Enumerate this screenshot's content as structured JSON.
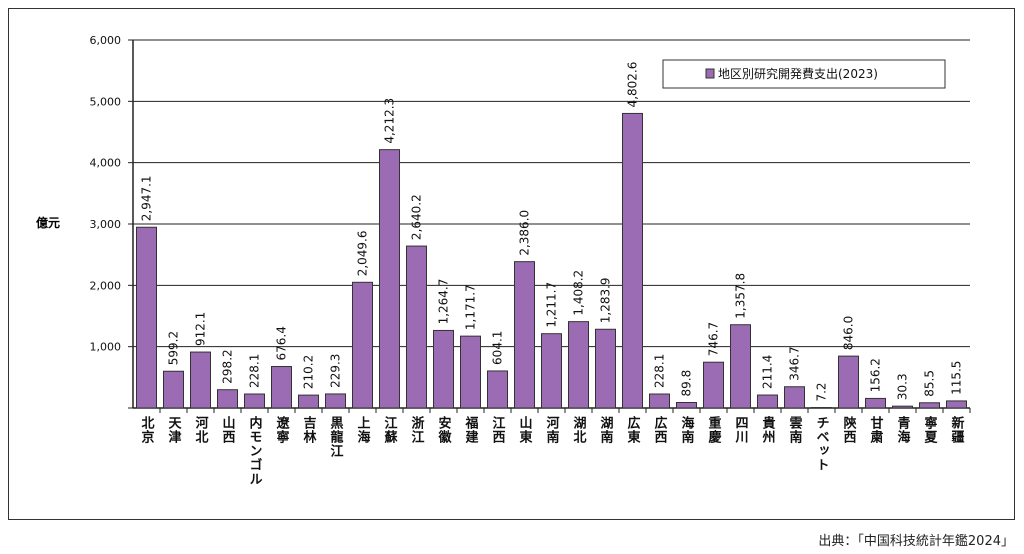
{
  "chart_data": {
    "type": "bar",
    "ylabel": "億元",
    "ylim": [
      0,
      6000
    ],
    "yticks": [
      "",
      "1,000",
      "2,000",
      "3,000",
      "4,000",
      "5,000",
      "6,000"
    ],
    "grid": true,
    "legend_position": "top-right",
    "series": [
      {
        "name": "地区別研究開発費支出(2023)",
        "color": "#9b6bb3"
      }
    ],
    "categories": [
      "北京",
      "天津",
      "河北",
      "山西",
      "内モンゴル",
      "遼寧",
      "吉林",
      "黒龍江",
      "上海",
      "江蘇",
      "浙江",
      "安徽",
      "福建",
      "江西",
      "山東",
      "河南",
      "湖北",
      "湖南",
      "広東",
      "広西",
      "海南",
      "重慶",
      "四川",
      "貴州",
      "雲南",
      "チベット",
      "陝西",
      "甘粛",
      "青海",
      "寧夏",
      "新疆"
    ],
    "values": [
      2947.1,
      599.2,
      912.1,
      298.2,
      228.1,
      676.4,
      210.2,
      229.3,
      2049.6,
      4212.3,
      2640.2,
      1264.7,
      1171.7,
      604.1,
      2386.0,
      1211.7,
      1408.2,
      1283.9,
      4802.6,
      228.1,
      89.8,
      746.7,
      1357.8,
      211.4,
      346.7,
      7.2,
      846.0,
      156.2,
      30.3,
      85.5,
      115.5
    ],
    "data_labels": [
      "2,947.1",
      "599.2",
      "912.1",
      "298.2",
      "228.1",
      "676.4",
      "210.2",
      "229.3",
      "2,049.6",
      "4,212.3",
      "2,640.2",
      "1,264.7",
      "1,171.7",
      "604.1",
      "2,386.0",
      "1,211.7",
      "1,408.2",
      "1,283.9",
      "4,802.6",
      "228.1",
      "89.8",
      "746.7",
      "1,357.8",
      "211.4",
      "346.7",
      "7.2",
      "846.0",
      "156.2",
      "30.3",
      "85.5",
      "115.5"
    ]
  },
  "source": "出典：「中国科技統計年鑑2024」"
}
